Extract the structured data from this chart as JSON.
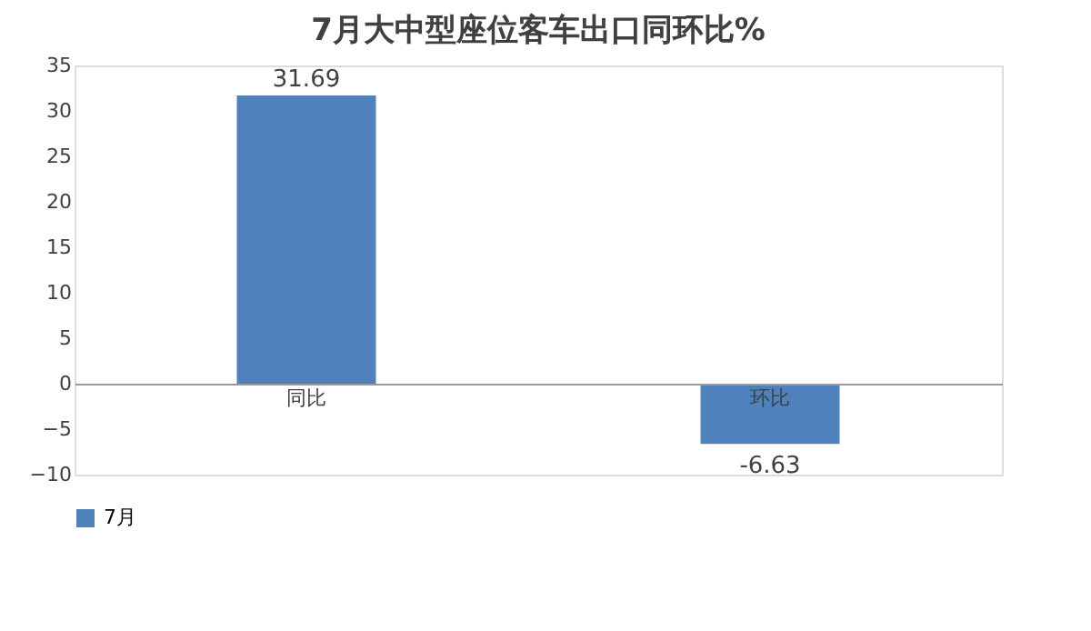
{
  "chart_data": {
    "type": "bar",
    "title": "7月大中型座位客车出口同环比%",
    "categories": [
      "同比",
      "环比"
    ],
    "series": [
      {
        "name": "7月",
        "color": "#4f81bd",
        "values": [
          31.69,
          -6.63
        ]
      }
    ],
    "ylim": [
      -10,
      35
    ],
    "yticks": [
      -10,
      -5,
      0,
      5,
      10,
      15,
      20,
      25,
      30,
      35
    ],
    "grid": false,
    "legend": "bottom",
    "data_labels": true
  }
}
